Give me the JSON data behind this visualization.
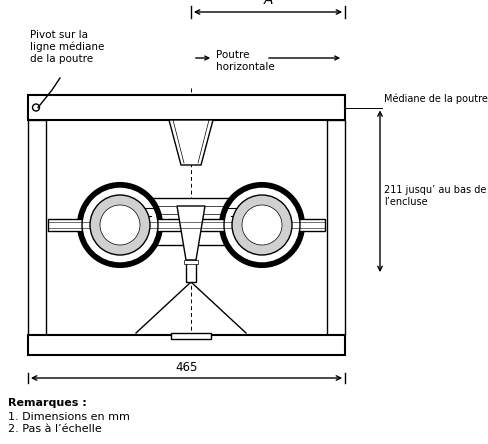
{
  "bg_color": "#ffffff",
  "line_color": "#000000",
  "annotations": {
    "A_label": "A",
    "pivot_label": "Pivot sur la\nligne médiane\nde la poutre",
    "poutre_label": "Poutre\nhorizontale",
    "mediane_label": "Médiane de la poutre",
    "dim_label": "211 jusqu’ au bas de\nl’encluse",
    "dim_465": "465",
    "remarks_title": "Remarques :",
    "remark1": "1. Dimensions en mm",
    "remark2": "2. Pas à l’échelle"
  }
}
